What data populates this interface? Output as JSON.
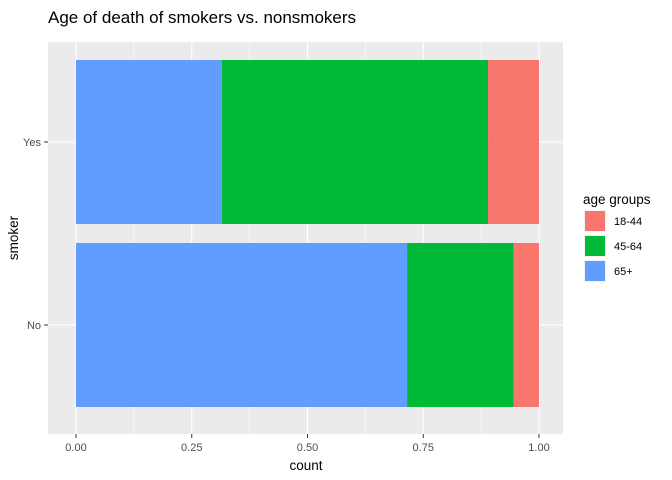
{
  "chart_data": {
    "type": "bar",
    "orientation": "horizontal",
    "stacked": "fill",
    "title": "Age of death of smokers vs. nonsmokers",
    "xlabel": "count",
    "ylabel": "smoker",
    "xlim": [
      0,
      1
    ],
    "x_ticks": [
      "0.00",
      "0.25",
      "0.50",
      "0.75",
      "1.00"
    ],
    "categories": [
      "Yes",
      "No"
    ],
    "series": [
      {
        "name": "65+",
        "color": "#619CFF",
        "values": [
          0.315,
          0.715
        ]
      },
      {
        "name": "45-64",
        "color": "#00BA38",
        "values": [
          0.575,
          0.23
        ]
      },
      {
        "name": "18-44",
        "color": "#F8766D",
        "values": [
          0.11,
          0.055
        ]
      }
    ],
    "legend": {
      "title": "age groups",
      "position": "right",
      "entries": [
        {
          "label": "18-44",
          "color": "#F8766D"
        },
        {
          "label": "45-64",
          "color": "#00BA38"
        },
        {
          "label": "65+",
          "color": "#619CFF"
        }
      ]
    },
    "grid": true,
    "panel_background": "#EBEBEB"
  }
}
